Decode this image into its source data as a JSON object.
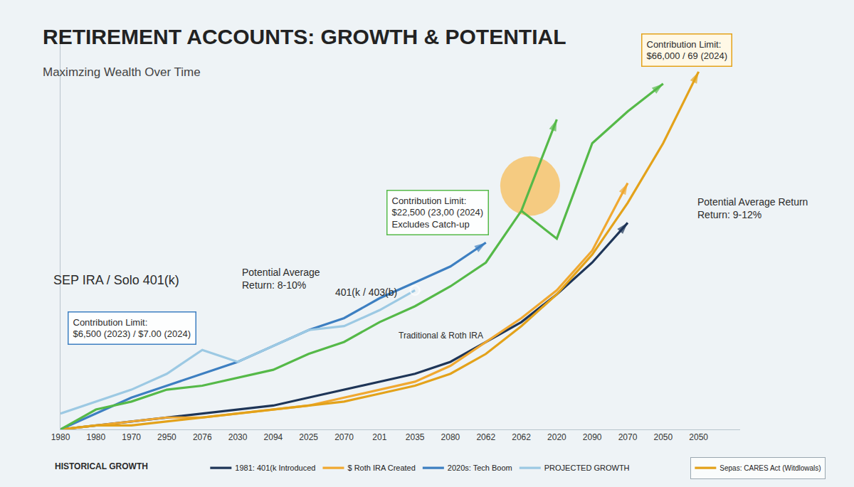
{
  "chart_data": {
    "type": "line",
    "title": "RETIREMENT ACCOUNTS: GROWTH & POTENTIAL",
    "subtitle": "Maximzing Wealth Over Time",
    "categories": [
      "1980",
      "1980",
      "1970",
      "2950",
      "2076",
      "2030",
      "2094",
      "2025",
      "2070",
      "201",
      "2035",
      "2080",
      "2062",
      "2062",
      "2020",
      "2090",
      "2070",
      "2050",
      "2050"
    ],
    "ylim": [
      0,
      100
    ],
    "grid": false,
    "tick_labels": "x",
    "legend": "bottom",
    "series": [
      {
        "name": "1981: 401(k Introduced",
        "color": "#1e3557",
        "marker": "arrow",
        "values": [
          0,
          1,
          2,
          3,
          4,
          5,
          6,
          8,
          10,
          12,
          14,
          17,
          22,
          27,
          34,
          42,
          52,
          null,
          null
        ]
      },
      {
        "name": "$ Roth IRA Created",
        "color": "#f0a830",
        "marker": "arrow",
        "values": [
          0,
          1,
          2,
          3,
          3,
          4,
          5,
          6,
          8,
          10,
          12,
          16,
          22,
          28,
          35,
          45,
          62,
          null,
          null
        ]
      },
      {
        "name": "2020s: Tech Boom",
        "color": "#3d7fc1",
        "marker": "arrow",
        "values": [
          0,
          4,
          8,
          11,
          14,
          17,
          21,
          25,
          28,
          33,
          37,
          41,
          47,
          null,
          null,
          null,
          null,
          null,
          null
        ]
      },
      {
        "name": "PROJECTED GROWTH",
        "color": "#9cc9e3",
        "marker": "circle-open",
        "values": [
          4,
          7,
          10,
          14,
          20,
          17,
          21,
          25,
          26,
          30,
          35,
          null,
          null,
          null,
          null,
          null,
          null,
          null,
          null
        ]
      },
      {
        "name": "Sepas: CARES Act (Witdlowals)",
        "color": "#e3a21a",
        "marker": "arrow",
        "values": [
          0,
          1,
          1,
          2,
          3,
          4,
          5,
          6,
          7,
          9,
          11,
          14,
          19,
          26,
          34,
          44,
          57,
          72,
          90
        ]
      },
      {
        "color": "#55b948",
        "marker": "arrow",
        "values": [
          0,
          5,
          7,
          10,
          11,
          13,
          15,
          19,
          22,
          27,
          31,
          36,
          42,
          55,
          78,
          null,
          null,
          null,
          null
        ]
      },
      {
        "color": "#55b948",
        "marker": "arrow",
        "values": [
          null,
          null,
          null,
          null,
          null,
          null,
          null,
          null,
          null,
          null,
          null,
          null,
          null,
          55,
          48,
          72,
          80,
          87,
          null
        ]
      }
    ],
    "annotations": [
      "Contribution Limit:\n$66,000 / 69 (2024)",
      "Contribution Limit:\n$22,500 (23,00 (2024)\nExcludes Catch-up",
      "Contribution Limit:\n$6,500 (2023) / $7.00 (2024)",
      "Potential Average\nReturn: 8-10%",
      "Potential Average Return\nReturn: 9-12%",
      "SEP IRA / Solo 401(k)",
      "401(k / 403(b)",
      "Traditional & Roth IRA",
      "HISTORICAL GROWTH"
    ]
  }
}
